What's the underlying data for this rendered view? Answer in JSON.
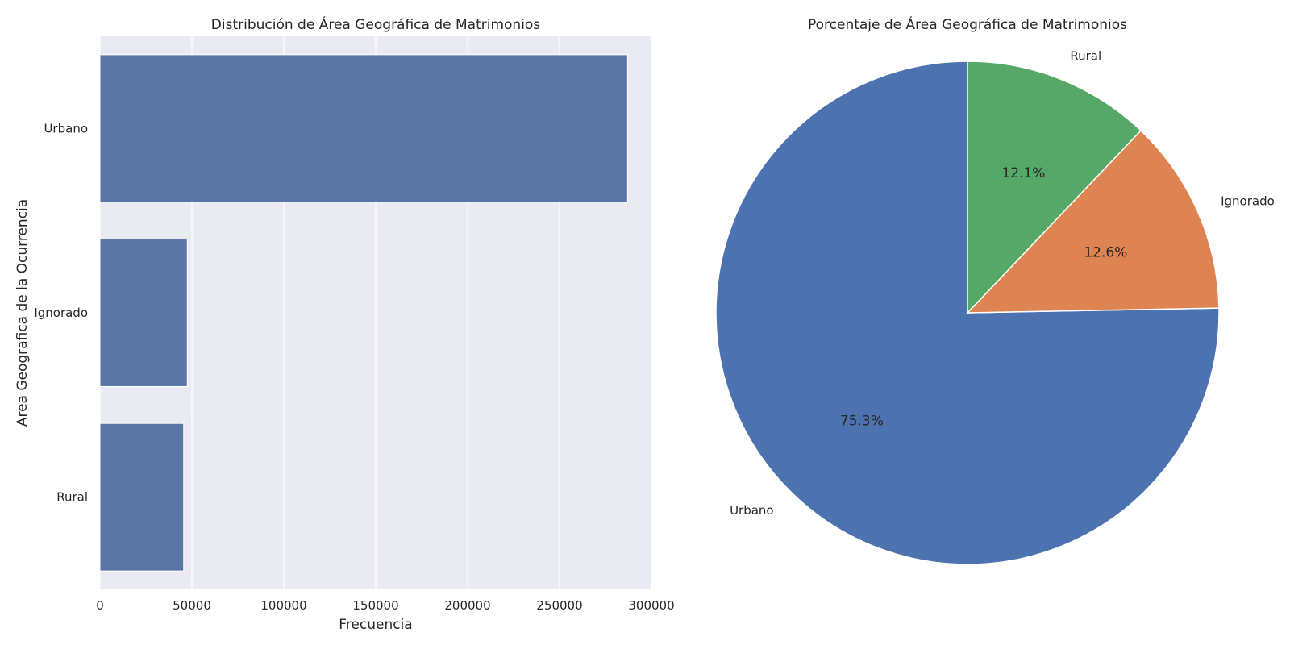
{
  "chart_data": [
    {
      "type": "bar",
      "orientation": "horizontal",
      "title": "Distribución de Área Geográfica de Matrimonios",
      "xlabel": "Frecuencia",
      "ylabel": "Area Geografica de la Ocurrencia",
      "categories": [
        "Urbano",
        "Ignorado",
        "Rural"
      ],
      "values": [
        287000,
        47500,
        45500
      ],
      "xlim": [
        0,
        300000
      ],
      "xticks": [
        0,
        50000,
        100000,
        150000,
        200000,
        250000,
        300000
      ],
      "xtick_labels": [
        "0",
        "50000",
        "100000",
        "150000",
        "200000",
        "250000",
        "300000"
      ],
      "grid": true,
      "bar_color": "#5975a4",
      "background": "#eaeaf2"
    },
    {
      "type": "pie",
      "title": "Porcentaje de Área Geográfica de Matrimonios",
      "labels": [
        "Urbano",
        "Ignorado",
        "Rural"
      ],
      "values": [
        75.3,
        12.6,
        12.1
      ],
      "pct_labels": [
        "75.3%",
        "12.6%",
        "12.1%"
      ],
      "colors": [
        "#4c72b0",
        "#dd8452",
        "#55a868"
      ],
      "start_angle": 90
    }
  ]
}
